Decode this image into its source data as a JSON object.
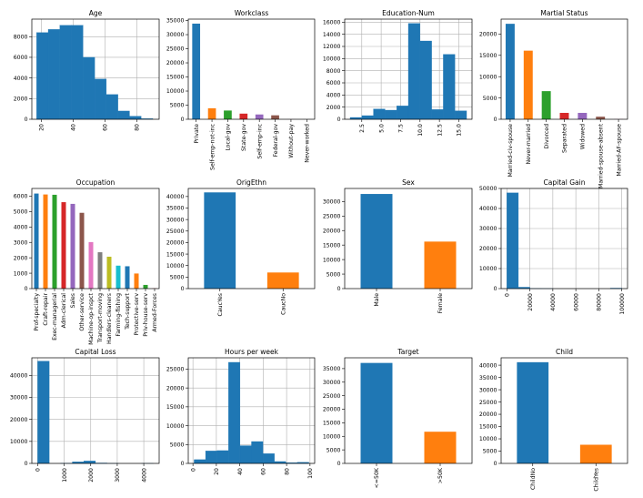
{
  "chart_data": [
    {
      "type": "histogram",
      "title": "Age",
      "xlim": [
        14,
        94
      ],
      "ylim": [
        0,
        9700
      ],
      "xticks": [
        20,
        40,
        60,
        80
      ],
      "yticks": [
        0,
        2000,
        4000,
        6000,
        8000
      ],
      "xtick_rotation": 90,
      "bins": [
        17,
        24.3,
        31.6,
        38.9,
        46.2,
        53.5,
        60.8,
        68.1,
        75.4,
        82.7,
        90
      ],
      "values": [
        8400,
        8700,
        9100,
        9100,
        6000,
        3900,
        2400,
        800,
        300,
        60
      ],
      "color": "#1f77b4",
      "grid": true
    },
    {
      "type": "bar",
      "title": "Workclass",
      "categories": [
        "Private",
        "Self-emp-not-inc",
        "Local-gov",
        "State-gov",
        "Self-emp-inc",
        "Federal-gov",
        "Without-pay",
        "Never-worked"
      ],
      "values": [
        33900,
        3900,
        3100,
        2000,
        1700,
        1400,
        20,
        10
      ],
      "ylim": [
        0,
        35500
      ],
      "yticks": [
        0,
        5000,
        10000,
        15000,
        20000,
        25000,
        30000,
        35000
      ],
      "colors": [
        "#1f77b4",
        "#ff7f0e",
        "#2ca02c",
        "#d62728",
        "#9467bd",
        "#8c564b",
        "#e377c2",
        "#7f7f7f"
      ],
      "grid": false
    },
    {
      "type": "histogram",
      "title": "Education-Num",
      "xlim": [
        0.3,
        16.7
      ],
      "ylim": [
        0,
        16500
      ],
      "xticks": [
        2.5,
        5.0,
        7.5,
        10.0,
        12.5,
        15.0
      ],
      "xtick_labels": [
        "2.5",
        "5.0",
        "7.5",
        "10.0",
        "12.5",
        "15.0"
      ],
      "yticks": [
        0,
        2000,
        4000,
        6000,
        8000,
        10000,
        12000,
        14000,
        16000
      ],
      "xtick_rotation": 90,
      "bins": [
        1,
        2.5,
        4,
        5.5,
        7,
        8.5,
        10,
        11.5,
        13,
        14.5,
        16
      ],
      "values": [
        300,
        600,
        1700,
        1500,
        2200,
        15800,
        12900,
        1600,
        10700,
        1400
      ],
      "color": "#1f77b4",
      "grid": true
    },
    {
      "type": "bar",
      "title": "Martial Status",
      "categories": [
        "Married-civ-spouse",
        "Never-married",
        "Divorced",
        "Separated",
        "Widowed",
        "Married-spouse-absent",
        "Married-AF-spouse"
      ],
      "values": [
        22400,
        16100,
        6600,
        1500,
        1500,
        600,
        40
      ],
      "ylim": [
        0,
        23500
      ],
      "yticks": [
        0,
        5000,
        10000,
        15000,
        20000
      ],
      "colors": [
        "#1f77b4",
        "#ff7f0e",
        "#2ca02c",
        "#d62728",
        "#9467bd",
        "#8c564b",
        "#e377c2"
      ],
      "grid": false
    },
    {
      "type": "bar",
      "title": "Occupation",
      "categories": [
        "Prof-specialty",
        "Craft-repair",
        "Exec-managerial",
        "Adm-clerical",
        "Sales",
        "Other-service",
        "Machine-op-inspct",
        "Transport-moving",
        "Handlers-cleaners",
        "Farming-fishing",
        "Tech-support",
        "Protective-serv",
        "Priv-house-serv",
        "Armed-Forces"
      ],
      "values": [
        6170,
        6110,
        6090,
        5610,
        5500,
        4920,
        3020,
        2360,
        2070,
        1490,
        1450,
        980,
        240,
        15
      ],
      "ylim": [
        0,
        6500
      ],
      "yticks": [
        0,
        1000,
        2000,
        3000,
        4000,
        5000,
        6000
      ],
      "colors": [
        "#1f77b4",
        "#ff7f0e",
        "#2ca02c",
        "#d62728",
        "#9467bd",
        "#8c564b",
        "#e377c2",
        "#7f7f7f",
        "#bcbd22",
        "#17becf",
        "#1f77b4",
        "#ff7f0e",
        "#2ca02c",
        "#d62728"
      ],
      "grid": false
    },
    {
      "type": "bar",
      "title": "OrigEthn",
      "categories": [
        "CaucYes",
        "CaucNo"
      ],
      "values": [
        41800,
        7000
      ],
      "ylim": [
        0,
        43500
      ],
      "yticks": [
        0,
        5000,
        10000,
        15000,
        20000,
        25000,
        30000,
        35000,
        40000
      ],
      "colors": [
        "#1f77b4",
        "#ff7f0e"
      ],
      "grid": false
    },
    {
      "type": "bar",
      "title": "Sex",
      "categories": [
        "Male",
        "Female"
      ],
      "values": [
        32600,
        16200
      ],
      "ylim": [
        0,
        34500
      ],
      "yticks": [
        0,
        5000,
        10000,
        15000,
        20000,
        25000,
        30000
      ],
      "colors": [
        "#1f77b4",
        "#ff7f0e"
      ],
      "grid": false
    },
    {
      "type": "histogram",
      "title": "Capital Gain",
      "xlim": [
        -5000,
        105000
      ],
      "ylim": [
        0,
        50000
      ],
      "xticks": [
        0,
        20000,
        40000,
        60000,
        80000,
        100000
      ],
      "yticks": [
        0,
        10000,
        20000,
        30000,
        40000,
        50000
      ],
      "xtick_rotation": 90,
      "bins": [
        0,
        10000,
        20000,
        30000,
        40000,
        50000,
        60000,
        70000,
        80000,
        90000,
        100000
      ],
      "values": [
        47800,
        700,
        50,
        20,
        0,
        0,
        0,
        0,
        0,
        240
      ],
      "color": "#1f77b4",
      "grid": true
    },
    {
      "type": "histogram",
      "title": "Capital Loss",
      "xlim": [
        -220,
        4580
      ],
      "ylim": [
        0,
        48000
      ],
      "xticks": [
        0,
        1000,
        2000,
        3000,
        4000
      ],
      "yticks": [
        0,
        10000,
        20000,
        30000,
        40000
      ],
      "xtick_rotation": 90,
      "bins": [
        0,
        436,
        871,
        1307,
        1742,
        2178,
        2614,
        3049,
        3485,
        3920,
        4356
      ],
      "values": [
        46500,
        0,
        60,
        700,
        1100,
        200,
        20,
        0,
        0,
        5
      ],
      "color": "#1f77b4",
      "grid": true
    },
    {
      "type": "histogram",
      "title": "Hours per week",
      "xlim": [
        -4,
        104
      ],
      "ylim": [
        0,
        28000
      ],
      "xticks": [
        0,
        20,
        40,
        60,
        80,
        100
      ],
      "yticks": [
        0,
        5000,
        10000,
        15000,
        20000,
        25000
      ],
      "xtick_rotation": 90,
      "bins": [
        1,
        10.8,
        20.6,
        30.4,
        40.2,
        50,
        59.8,
        69.6,
        79.4,
        89.2,
        99
      ],
      "values": [
        1000,
        3300,
        3400,
        26800,
        4700,
        5800,
        2600,
        500,
        200,
        300
      ],
      "color": "#1f77b4",
      "grid": true
    },
    {
      "type": "bar",
      "title": "Target",
      "categories": [
        "<=50K",
        ">50K"
      ],
      "values": [
        37100,
        11700
      ],
      "ylim": [
        0,
        39000
      ],
      "yticks": [
        0,
        5000,
        10000,
        15000,
        20000,
        25000,
        30000,
        35000
      ],
      "colors": [
        "#1f77b4",
        "#ff7f0e"
      ],
      "grid": false
    },
    {
      "type": "bar",
      "title": "Child",
      "categories": [
        "ChildNo",
        "ChildYes"
      ],
      "values": [
        41200,
        7600
      ],
      "ylim": [
        0,
        43000
      ],
      "yticks": [
        0,
        5000,
        10000,
        15000,
        20000,
        25000,
        30000,
        35000,
        40000
      ],
      "colors": [
        "#1f77b4",
        "#ff7f0e"
      ],
      "grid": false
    }
  ]
}
